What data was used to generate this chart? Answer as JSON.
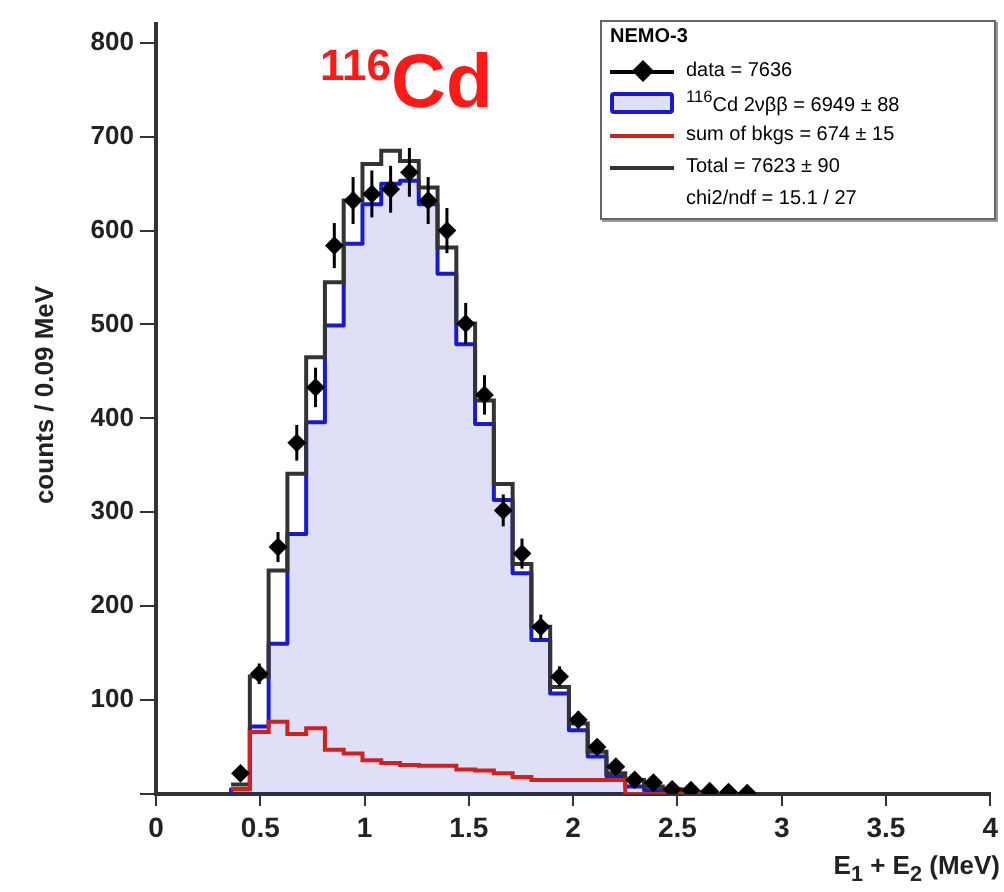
{
  "chart_data": {
    "type": "histogram",
    "title": "$^{116}$Cd",
    "xlabel": "E$_{1}$ + E$_{2}$ (MeV)",
    "ylabel": "counts / 0.09 MeV",
    "legend_title": "NEMO-3",
    "legend": "top right",
    "grid": false,
    "xlim": [
      0,
      4
    ],
    "xticks": [
      0,
      0.5,
      1,
      1.5,
      2,
      2.5,
      3,
      3.5,
      4
    ],
    "ylim": [
      0,
      820
    ],
    "yticks": [
      {
        "value": 0,
        "label": null
      },
      100,
      200,
      300,
      400,
      500,
      600,
      700,
      800
    ],
    "bins": [
      0.36,
      0.45,
      0.54,
      0.63,
      0.72,
      0.81,
      0.9,
      0.99,
      1.08,
      1.17,
      1.26,
      1.35,
      1.44,
      1.53,
      1.62,
      1.71,
      1.8,
      1.89,
      1.98,
      2.07,
      2.16,
      2.25,
      2.34,
      2.43,
      2.52,
      2.61
    ],
    "series": [
      {
        "name": "$^{116}$Cd 2νββ = 6949 ± 88",
        "color": "#1a1acc",
        "values": [
          5,
          72,
          160,
          277,
          396,
          499,
          586,
          628,
          650,
          653,
          628,
          554,
          479,
          394,
          313,
          235,
          164,
          107,
          68,
          40,
          19,
          8,
          4,
          2,
          1
        ]
      },
      {
        "name": "sum of bkgs = 674 ± 15",
        "type": "step",
        "color": "#cc2222",
        "x": [
          0.36,
          0.45,
          0.54,
          0.63,
          0.72,
          0.81,
          0.9,
          0.99,
          1.08,
          1.17,
          1.26,
          1.35,
          1.44,
          1.53,
          1.62,
          1.71,
          1.8,
          1.89,
          1.98,
          2.07,
          2.16,
          2.25,
          2.34,
          2.43,
          2.52,
          2.61
        ],
        "values": [
          5,
          66,
          77,
          64,
          70,
          47,
          43,
          36,
          33,
          31,
          30,
          30,
          26,
          25,
          22,
          18,
          15,
          15,
          15,
          15,
          15,
          0,
          0,
          0,
          0,
          0
        ]
      },
      {
        "name": "Total = 7623 ± 90",
        "type": "step",
        "color": "#333333",
        "x": [
          0.36,
          0.45,
          0.54,
          0.63,
          0.72,
          0.81,
          0.9,
          0.99,
          1.08,
          1.17,
          1.26,
          1.35,
          1.44,
          1.53,
          1.62,
          1.71,
          1.8,
          1.89,
          1.98,
          2.07,
          2.16,
          2.25,
          2.34,
          2.43,
          2.52,
          2.61
        ],
        "values": [
          10,
          125,
          238,
          341,
          465,
          545,
          632,
          671,
          685,
          674,
          646,
          582,
          501,
          419,
          330,
          245,
          178,
          114,
          75,
          45,
          22,
          15,
          8,
          5,
          2,
          0
        ]
      },
      {
        "name": "data = 7636",
        "type": "scatter",
        "color": "#000000",
        "marker": "diamond",
        "x": [
          0.405,
          0.495,
          0.585,
          0.675,
          0.765,
          0.855,
          0.945,
          1.035,
          1.125,
          1.215,
          1.305,
          1.395,
          1.485,
          1.575,
          1.665,
          1.755,
          1.845,
          1.935,
          2.025,
          2.115,
          2.205,
          2.295,
          2.385,
          2.475,
          2.565,
          2.655,
          2.745,
          2.835
        ],
        "values": [
          22,
          128,
          263,
          374,
          433,
          584,
          632,
          639,
          644,
          662,
          632,
          600,
          501,
          425,
          302,
          256,
          178,
          125,
          79,
          50,
          29,
          15,
          12,
          5,
          4,
          3,
          2,
          1
        ],
        "errors": [
          5,
          11,
          16,
          19,
          21,
          24,
          25,
          25,
          25,
          26,
          25,
          24,
          22,
          21,
          17,
          16,
          13,
          11,
          9,
          7,
          5,
          4,
          3,
          2,
          2,
          2,
          1,
          1
        ]
      }
    ],
    "annotations": [
      "chi2/ndf = 15.1 / 27"
    ]
  }
}
